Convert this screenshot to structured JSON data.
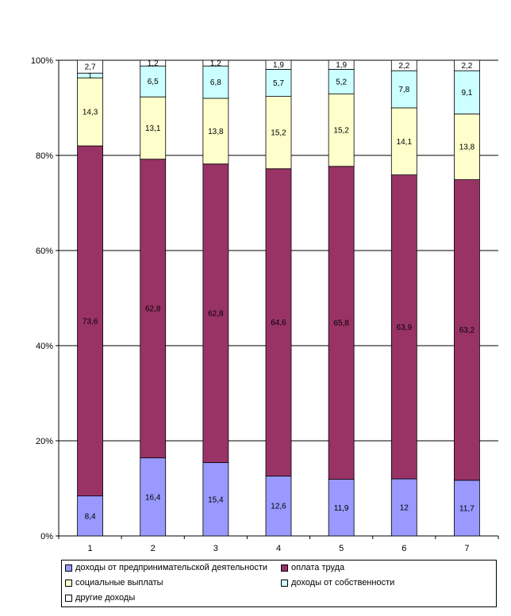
{
  "chart_data": {
    "type": "bar",
    "stacked": true,
    "percent_scale": true,
    "categories": [
      "1",
      "2",
      "3",
      "4",
      "5",
      "6",
      "7"
    ],
    "y_ticks": [
      "0%",
      "20%",
      "40%",
      "60%",
      "80%",
      "100%"
    ],
    "ylim": [
      0,
      100
    ],
    "grid": true,
    "legend_position": "bottom",
    "series": [
      {
        "name": "доходы от предпринимательской деятельности",
        "color": "#9999ff",
        "values": [
          8.4,
          16.4,
          15.4,
          12.6,
          11.9,
          12,
          11.7
        ],
        "labels": [
          "8,4",
          "16,4",
          "15,4",
          "12,6",
          "11,9",
          "12",
          "11,7"
        ]
      },
      {
        "name": "оплата труда",
        "color": "#993366",
        "values": [
          73.6,
          62.8,
          62.8,
          64.6,
          65.8,
          63.9,
          63.2
        ],
        "labels": [
          "73,6",
          "62,8",
          "62,8",
          "64,6",
          "65,8",
          "63,9",
          "63,2"
        ]
      },
      {
        "name": "социальные выплаты",
        "color": "#ffffcc",
        "values": [
          14.3,
          13.1,
          13.8,
          15.2,
          15.2,
          14.1,
          13.8
        ],
        "labels": [
          "14,3",
          "13,1",
          "13,8",
          "15,2",
          "15,2",
          "14,1",
          "13,8"
        ]
      },
      {
        "name": "доходы от собственности",
        "color": "#ccffff",
        "values": [
          1,
          6.5,
          6.8,
          5.7,
          5.2,
          7.8,
          9.1
        ],
        "labels": [
          "1",
          "6,5",
          "6,8",
          "5,7",
          "5,2",
          "7,8",
          "9,1"
        ]
      },
      {
        "name": "другие доходы",
        "color": "#ffffff",
        "values": [
          2.7,
          1.2,
          1.2,
          1.9,
          1.9,
          2.2,
          2.2
        ],
        "labels": [
          "2,7",
          "1,2",
          "1,2",
          "1,9",
          "1,9",
          "2,2",
          "2,2"
        ]
      }
    ]
  }
}
